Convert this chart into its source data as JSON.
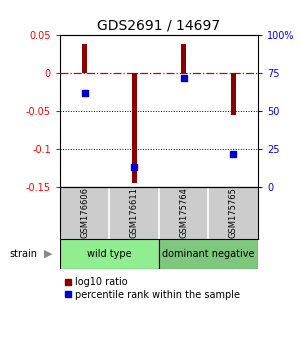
{
  "title": "GDS2691 / 14697",
  "samples": [
    "GSM176606",
    "GSM176611",
    "GSM175764",
    "GSM175765"
  ],
  "log10_ratios": [
    0.038,
    -0.145,
    0.038,
    -0.055
  ],
  "percentile_ranks": [
    62,
    13,
    72,
    22
  ],
  "groups": [
    {
      "label": "wild type",
      "samples": [
        0,
        1
      ],
      "color": "#90EE90"
    },
    {
      "label": "dominant negative",
      "samples": [
        2,
        3
      ],
      "color": "#7EC87E"
    }
  ],
  "ylim_left": [
    -0.15,
    0.05
  ],
  "ylim_right": [
    0,
    100
  ],
  "bar_color": "#8B0000",
  "dot_color": "#0000CD",
  "zero_line_color": "#CC0000",
  "dotted_line_color": "#000000",
  "background_color": "#ffffff",
  "bar_width": 0.1,
  "title_fontsize": 10,
  "tick_fontsize": 7,
  "legend_fontsize": 7,
  "sample_label_fontsize": 6,
  "group_label_fontsize": 7
}
